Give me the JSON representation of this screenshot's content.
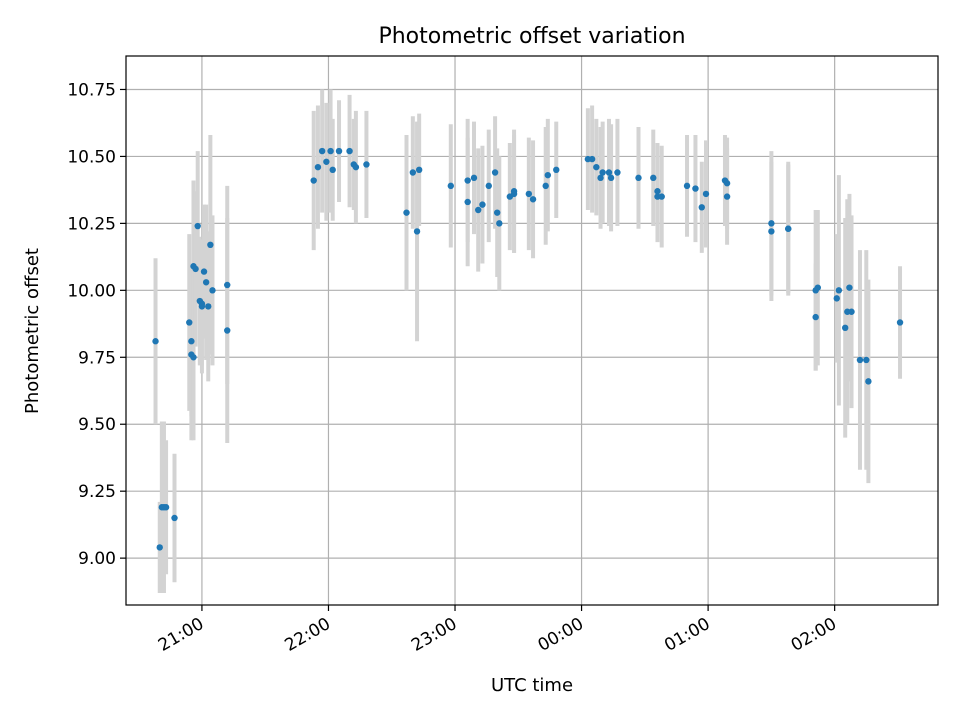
{
  "chart_data": {
    "type": "scatter",
    "title": "Photometric offset variation",
    "xlabel": "UTC time",
    "ylabel": "Photometric offset",
    "x_unit": "hours_utc",
    "xlim": [
      "20:24",
      "02:49"
    ],
    "ylim": [
      8.825,
      10.875
    ],
    "grid": true,
    "x_ticks": [
      "21:00",
      "22:00",
      "23:00",
      "00:00",
      "01:00",
      "02:00"
    ],
    "y_ticks": [
      "9.00",
      "9.25",
      "9.50",
      "9.75",
      "10.00",
      "10.25",
      "10.50",
      "10.75"
    ],
    "colors": {
      "point": "#1f77b4",
      "errorbar": "#d3d3d3",
      "grid": "#b0b0b0"
    },
    "series": [
      {
        "columns": [
          "time",
          "y",
          "yerr"
        ],
        "points": [
          [
            "20:38",
            9.81,
            0.31
          ],
          [
            "20:40",
            9.04,
            0.17
          ],
          [
            "20:41",
            9.19,
            0.32
          ],
          [
            "20:42",
            9.19,
            0.32
          ],
          [
            "20:43",
            9.19,
            0.25
          ],
          [
            "20:47",
            9.15,
            0.24
          ],
          [
            "20:54",
            9.88,
            0.33
          ],
          [
            "20:55",
            9.81,
            0.28
          ],
          [
            "20:55",
            9.76,
            0.32
          ],
          [
            "20:56",
            9.75,
            0.31
          ],
          [
            "20:56",
            10.09,
            0.32
          ],
          [
            "20:57",
            10.08,
            0.29
          ],
          [
            "20:58",
            10.24,
            0.28
          ],
          [
            "20:59",
            9.96,
            0.24
          ],
          [
            "21:00",
            9.95,
            0.23
          ],
          [
            "21:00",
            9.94,
            0.25
          ],
          [
            "21:01",
            10.07,
            0.25
          ],
          [
            "21:02",
            10.03,
            0.29
          ],
          [
            "21:03",
            9.94,
            0.28
          ],
          [
            "21:04",
            10.17,
            0.41
          ],
          [
            "21:05",
            10.0,
            0.28
          ],
          [
            "21:12",
            10.02,
            0.37
          ],
          [
            "21:12",
            9.85,
            0.42
          ],
          [
            "21:53",
            10.41,
            0.26
          ],
          [
            "21:55",
            10.46,
            0.23
          ],
          [
            "21:57",
            10.52,
            0.23
          ],
          [
            "21:59",
            10.48,
            0.22
          ],
          [
            "22:01",
            10.52,
            0.23
          ],
          [
            "22:02",
            10.45,
            0.19
          ],
          [
            "22:05",
            10.52,
            0.19
          ],
          [
            "22:10",
            10.52,
            0.21
          ],
          [
            "22:12",
            10.47,
            0.17
          ],
          [
            "22:13",
            10.46,
            0.21
          ],
          [
            "22:18",
            10.47,
            0.2
          ],
          [
            "22:37",
            10.29,
            0.29
          ],
          [
            "22:40",
            10.44,
            0.21
          ],
          [
            "22:42",
            10.22,
            0.41
          ],
          [
            "22:43",
            10.45,
            0.21
          ],
          [
            "22:58",
            10.39,
            0.23
          ],
          [
            "23:06",
            10.33,
            0.24
          ],
          [
            "23:06",
            10.41,
            0.23
          ],
          [
            "23:09",
            10.42,
            0.21
          ],
          [
            "23:11",
            10.3,
            0.23
          ],
          [
            "23:13",
            10.32,
            0.22
          ],
          [
            "23:16",
            10.39,
            0.21
          ],
          [
            "23:19",
            10.44,
            0.21
          ],
          [
            "23:20",
            10.29,
            0.24
          ],
          [
            "23:21",
            10.25,
            0.25
          ],
          [
            "23:26",
            10.35,
            0.2
          ],
          [
            "23:28",
            10.37,
            0.23
          ],
          [
            "23:28",
            10.36,
            0.22
          ],
          [
            "23:35",
            10.36,
            0.21
          ],
          [
            "23:37",
            10.34,
            0.22
          ],
          [
            "23:43",
            10.39,
            0.22
          ],
          [
            "23:44",
            10.43,
            0.21
          ],
          [
            "23:48",
            10.45,
            0.18
          ],
          [
            "00:03",
            10.49,
            0.19
          ],
          [
            "00:05",
            10.49,
            0.2
          ],
          [
            "00:07",
            10.46,
            0.18
          ],
          [
            "00:09",
            10.42,
            0.19
          ],
          [
            "00:10",
            10.44,
            0.19
          ],
          [
            "00:13",
            10.44,
            0.2
          ],
          [
            "00:14",
            10.42,
            0.2
          ],
          [
            "00:17",
            10.44,
            0.2
          ],
          [
            "00:27",
            10.42,
            0.19
          ],
          [
            "00:34",
            10.42,
            0.18
          ],
          [
            "00:36",
            10.37,
            0.18
          ],
          [
            "00:36",
            10.35,
            0.17
          ],
          [
            "00:38",
            10.35,
            0.19
          ],
          [
            "00:50",
            10.39,
            0.19
          ],
          [
            "00:54",
            10.38,
            0.2
          ],
          [
            "00:57",
            10.31,
            0.17
          ],
          [
            "00:59",
            10.36,
            0.2
          ],
          [
            "01:08",
            10.41,
            0.17
          ],
          [
            "01:09",
            10.4,
            0.17
          ],
          [
            "01:09",
            10.35,
            0.18
          ],
          [
            "01:30",
            10.25,
            0.27
          ],
          [
            "01:30",
            10.22,
            0.26
          ],
          [
            "01:38",
            10.23,
            0.25
          ],
          [
            "01:38",
            10.23,
            0.24
          ],
          [
            "01:51",
            10.0,
            0.3
          ],
          [
            "01:51",
            9.9,
            0.2
          ],
          [
            "01:52",
            10.01,
            0.29
          ],
          [
            "02:01",
            9.97,
            0.24
          ],
          [
            "02:02",
            10.0,
            0.43
          ],
          [
            "02:05",
            9.86,
            0.41
          ],
          [
            "02:06",
            9.92,
            0.42
          ],
          [
            "02:07",
            10.01,
            0.35
          ],
          [
            "02:08",
            9.92,
            0.36
          ],
          [
            "02:12",
            9.74,
            0.41
          ],
          [
            "02:15",
            9.74,
            0.41
          ],
          [
            "02:16",
            9.66,
            0.38
          ],
          [
            "02:31",
            9.88,
            0.21
          ]
        ]
      }
    ]
  }
}
